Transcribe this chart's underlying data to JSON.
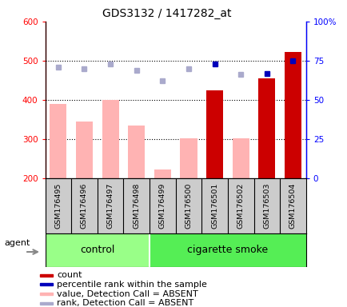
{
  "title": "GDS3132 / 1417282_at",
  "samples": [
    "GSM176495",
    "GSM176496",
    "GSM176497",
    "GSM176498",
    "GSM176499",
    "GSM176500",
    "GSM176501",
    "GSM176502",
    "GSM176503",
    "GSM176504"
  ],
  "bar_values": [
    390,
    345,
    400,
    335,
    222,
    302,
    425,
    302,
    455,
    522
  ],
  "bar_absent": [
    true,
    true,
    true,
    true,
    true,
    true,
    false,
    true,
    false,
    false
  ],
  "rank_values": [
    71,
    70,
    73,
    69,
    62,
    70,
    73,
    66,
    67,
    75
  ],
  "rank_absent": [
    true,
    true,
    true,
    true,
    true,
    true,
    false,
    true,
    false,
    false
  ],
  "ylim_left": [
    200,
    600
  ],
  "ylim_right": [
    0,
    100
  ],
  "yticks_left": [
    200,
    300,
    400,
    500,
    600
  ],
  "ytick_labels_right": [
    "0",
    "25",
    "50",
    "75",
    "100%"
  ],
  "yticks_right": [
    0,
    25,
    50,
    75,
    100
  ],
  "bar_color_present": "#cc0000",
  "bar_color_absent": "#ffb3b3",
  "rank_color_present": "#0000bb",
  "rank_color_absent": "#aaaacc",
  "control_color": "#99ff88",
  "smoke_color": "#55ee55",
  "control_n": 4,
  "smoke_n": 6,
  "control_label": "control",
  "smoke_label": "cigarette smoke",
  "agent_label": "agent",
  "legend_items": [
    {
      "color": "#cc0000",
      "label": "count"
    },
    {
      "color": "#0000bb",
      "label": "percentile rank within the sample"
    },
    {
      "color": "#ffb3b3",
      "label": "value, Detection Call = ABSENT"
    },
    {
      "color": "#aaaacc",
      "label": "rank, Detection Call = ABSENT"
    }
  ],
  "gridline_values": [
    300,
    400,
    500
  ],
  "sample_box_color": "#cccccc",
  "fig_width": 4.35,
  "fig_height": 3.84,
  "dpi": 100
}
